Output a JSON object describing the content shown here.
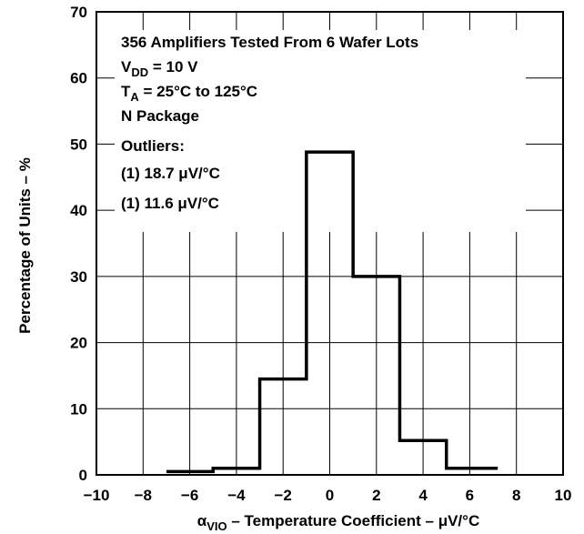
{
  "chart_data": {
    "type": "histogram",
    "bins": [
      {
        "x0": -7,
        "x1": -5,
        "value": 0.5
      },
      {
        "x0": -5,
        "x1": -3,
        "value": 1.0
      },
      {
        "x0": -3,
        "x1": -1,
        "value": 14.5
      },
      {
        "x0": -1,
        "x1": 1,
        "value": 48.8
      },
      {
        "x0": 1,
        "x1": 3,
        "value": 30.0
      },
      {
        "x0": 3,
        "x1": 5,
        "value": 5.2
      },
      {
        "x0": 5,
        "x1": 7.2,
        "value": 1.0
      }
    ],
    "xlim": [
      -10,
      10
    ],
    "ylim": [
      0,
      70
    ],
    "xticks": [
      "−10",
      "−8",
      "−6",
      "−4",
      "−2",
      "0",
      "2",
      "4",
      "6",
      "8",
      "10"
    ],
    "yticks": [
      "0",
      "10",
      "20",
      "30",
      "40",
      "50",
      "60",
      "70"
    ],
    "xlabel": {
      "symbol": "α",
      "subscript": "VIO",
      "text": " – Temperature Coefficient – μV/°C"
    },
    "ylabel": "Percentage of Units – %",
    "grid": true,
    "annotations": {
      "line1": "356 Amplifiers Tested From 6 Wafer Lots",
      "line2_main": "V",
      "line2_sub": "DD",
      "line2_rest": " = 10 V",
      "line3_main": "T",
      "line3_sub": "A",
      "line3_rest": " = 25°C to 125°C",
      "line4": "N Package",
      "line5": "Outliers:",
      "line6": "(1) 18.7 μV/°C",
      "line7": "(1) 11.6 μV/°C"
    }
  }
}
